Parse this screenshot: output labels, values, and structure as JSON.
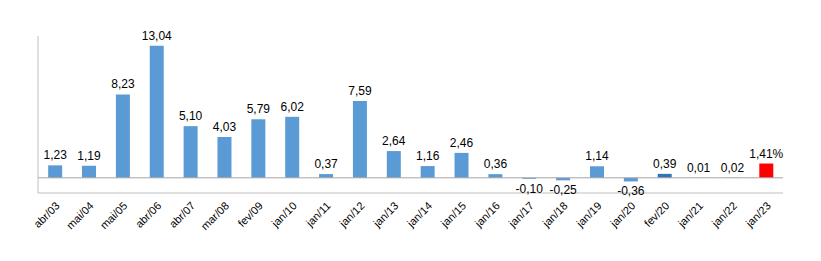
{
  "chart_data": {
    "type": "bar",
    "categories": [
      "abr/03",
      "mai/04",
      "mai/05",
      "abr/06",
      "abr/07",
      "mar/08",
      "fev/09",
      "jan/10",
      "jan/11",
      "jan/12",
      "jan/13",
      "jan/14",
      "jan/15",
      "jan/16",
      "jan/17",
      "jan/18",
      "jan/19",
      "jan/20",
      "fev/20",
      "jan/21",
      "jan/22",
      "jan/23"
    ],
    "values": [
      1.23,
      1.19,
      8.23,
      13.04,
      5.1,
      4.03,
      5.79,
      6.02,
      0.37,
      7.59,
      2.64,
      1.16,
      2.46,
      0.36,
      -0.1,
      -0.25,
      1.14,
      -0.36,
      0.39,
      0.01,
      0.02,
      1.41
    ],
    "value_labels": [
      "1,23",
      "1,19",
      "8,23",
      "13,04",
      "5,10",
      "4,03",
      "5,79",
      "6,02",
      "0,37",
      "7,59",
      "2,64",
      "1,16",
      "2,46",
      "0,36",
      "-0,10",
      "-0,25",
      "1,14",
      "-0,36",
      "0,39",
      "0,01",
      "0,02",
      "1,41%"
    ],
    "colors": [
      "#5b9bd5",
      "#5b9bd5",
      "#5b9bd5",
      "#5b9bd5",
      "#5b9bd5",
      "#5b9bd5",
      "#5b9bd5",
      "#5b9bd5",
      "#5b9bd5",
      "#5b9bd5",
      "#5b9bd5",
      "#5b9bd5",
      "#5b9bd5",
      "#5b9bd5",
      "#5b9bd5",
      "#5b9bd5",
      "#5b9bd5",
      "#5b9bd5",
      "#2e75b6",
      "#5b9bd5",
      "#5b9bd5",
      "#ff0000"
    ],
    "ylim": [
      -1.5,
      14
    ],
    "yticks": [
      0
    ],
    "grid": false,
    "data_labels": true,
    "tick_labels": "x"
  }
}
